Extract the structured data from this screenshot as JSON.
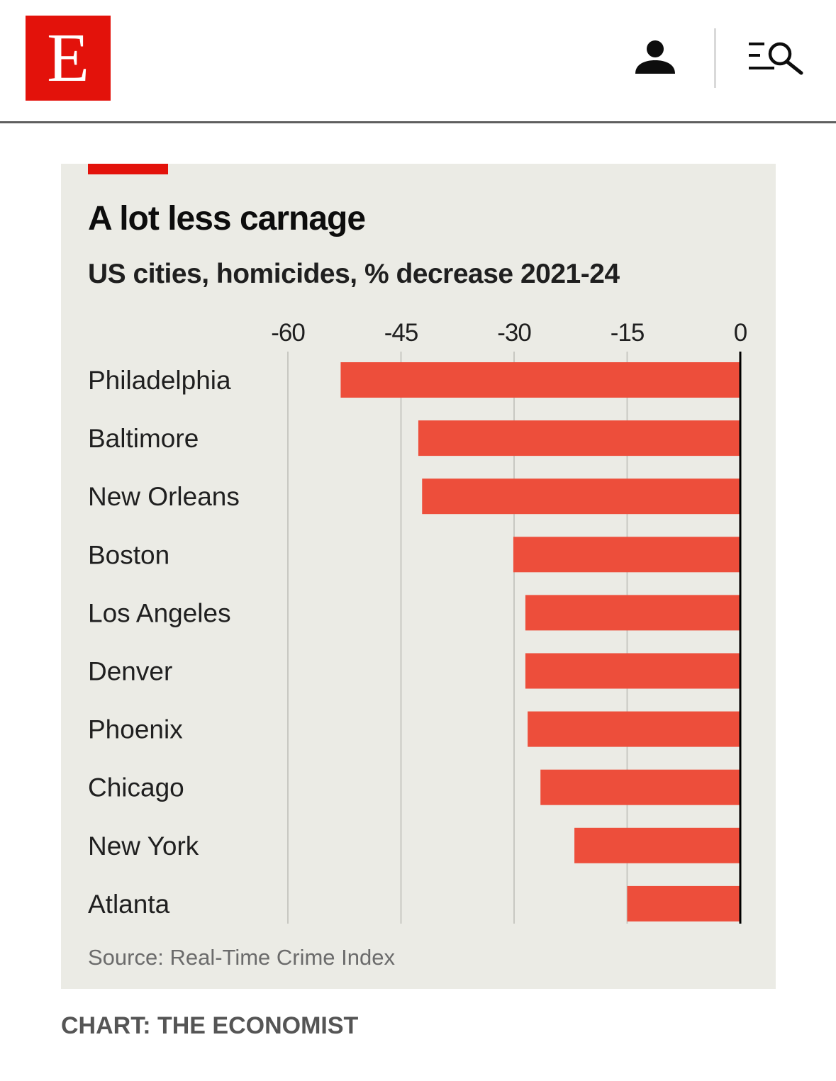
{
  "header": {
    "logo_letter": "E",
    "brand_color": "#e3120b",
    "icons": [
      "account-icon",
      "menu-search-icon"
    ]
  },
  "chart": {
    "title": "A lot less carnage",
    "subtitle": "US cities, homicides, % decrease 2021-24",
    "source": "Source: Real-Time Crime Index"
  },
  "credit": "CHART: THE ECONOMIST",
  "colors": {
    "bar": "#ed4e3b",
    "panel_background": "#ebebe5",
    "gridline": "#c8c8c2",
    "zero_line": "#000000",
    "brand_red": "#e3120b"
  },
  "chart_data": {
    "type": "bar",
    "orientation": "horizontal",
    "title": "A lot less carnage",
    "subtitle": "US cities, homicides, % decrease 2021-24",
    "categories": [
      "Philadelphia",
      "Baltimore",
      "New Orleans",
      "Boston",
      "Los Angeles",
      "Denver",
      "Phoenix",
      "Chicago",
      "New York",
      "Atlanta"
    ],
    "values": [
      -53,
      -42.7,
      -42.2,
      -30.1,
      -28.5,
      -28.5,
      -28.2,
      -26.5,
      -22,
      -15
    ],
    "xlim": [
      -60,
      0
    ],
    "xticks": [
      -60,
      -45,
      -30,
      -15,
      0
    ],
    "xtick_labels": [
      "-60",
      "-45",
      "-30",
      "-15",
      "0"
    ],
    "axis_position": "top",
    "grid": true,
    "legend": "none",
    "source": "Source: Real-Time Crime Index"
  }
}
